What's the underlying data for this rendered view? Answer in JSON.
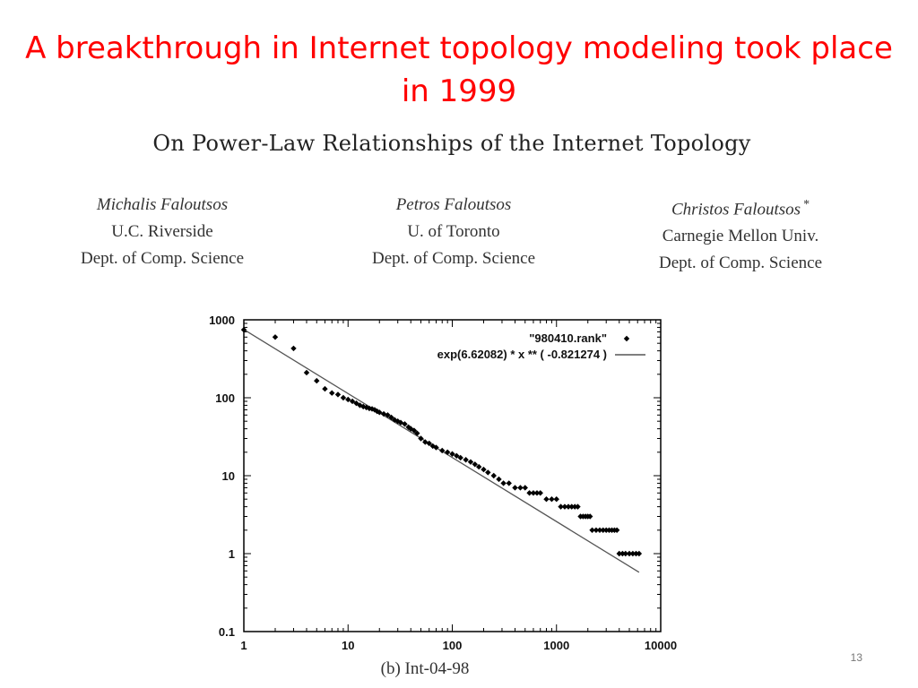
{
  "slide": {
    "title": "A breakthrough in Internet topology modeling took place in 1999",
    "page_number": "13"
  },
  "paper": {
    "title": "On Power-Law Relationships of the Internet Topology",
    "authors": [
      {
        "name": "Michalis Faloutsos",
        "affiliation": "U.C. Riverside",
        "dept": "Dept. of Comp. Science",
        "mark": ""
      },
      {
        "name": "Petros Faloutsos",
        "affiliation": "U. of Toronto",
        "dept": "Dept. of Comp. Science",
        "mark": ""
      },
      {
        "name": "Christos Faloutsos",
        "affiliation": "Carnegie Mellon Univ.",
        "dept": "Dept. of Comp. Science",
        "mark": "*"
      }
    ]
  },
  "figure": {
    "caption": "(b) Int-04-98"
  },
  "chart_data": {
    "type": "scatter",
    "xscale": "log",
    "yscale": "log",
    "xlim": [
      1,
      10000
    ],
    "ylim": [
      0.1,
      1000
    ],
    "xticks": [
      "1",
      "10",
      "100",
      "1000",
      "10000"
    ],
    "yticks": [
      "1000",
      "100",
      "10",
      "1",
      "0.1"
    ],
    "grid": false,
    "legend_position": "top-right",
    "series": [
      {
        "name": "\"980410.rank\"",
        "marker": "diamond",
        "color": "#000000",
        "points": [
          [
            1,
            745
          ],
          [
            2,
            600
          ],
          [
            3,
            430
          ],
          [
            4,
            210
          ],
          [
            5,
            165
          ],
          [
            6,
            130
          ],
          [
            7,
            115
          ],
          [
            8,
            110
          ],
          [
            9,
            100
          ],
          [
            10,
            95
          ],
          [
            11,
            90
          ],
          [
            12,
            85
          ],
          [
            13,
            80
          ],
          [
            14,
            77
          ],
          [
            15,
            75
          ],
          [
            16,
            73
          ],
          [
            17,
            72
          ],
          [
            18,
            70
          ],
          [
            19,
            67
          ],
          [
            20,
            65
          ],
          [
            22,
            62
          ],
          [
            24,
            60
          ],
          [
            26,
            56
          ],
          [
            28,
            52
          ],
          [
            30,
            50
          ],
          [
            32,
            48
          ],
          [
            35,
            46
          ],
          [
            38,
            42
          ],
          [
            40,
            40
          ],
          [
            43,
            38
          ],
          [
            46,
            35
          ],
          [
            50,
            30
          ],
          [
            55,
            27
          ],
          [
            60,
            26
          ],
          [
            65,
            24
          ],
          [
            70,
            23
          ],
          [
            80,
            21
          ],
          [
            90,
            20
          ],
          [
            100,
            19
          ],
          [
            110,
            18
          ],
          [
            120,
            17
          ],
          [
            135,
            16
          ],
          [
            150,
            15
          ],
          [
            165,
            14
          ],
          [
            180,
            13
          ],
          [
            200,
            12
          ],
          [
            220,
            11
          ],
          [
            250,
            10
          ],
          [
            280,
            9
          ],
          [
            310,
            8
          ],
          [
            350,
            8
          ],
          [
            400,
            7
          ],
          [
            450,
            7
          ],
          [
            500,
            7
          ],
          [
            550,
            6
          ],
          [
            600,
            6
          ],
          [
            650,
            6
          ],
          [
            700,
            6
          ],
          [
            800,
            5
          ],
          [
            900,
            5
          ],
          [
            1000,
            5
          ],
          [
            1100,
            4
          ],
          [
            1200,
            4
          ],
          [
            1300,
            4
          ],
          [
            1400,
            4
          ],
          [
            1500,
            4
          ],
          [
            1600,
            4
          ],
          [
            1700,
            3
          ],
          [
            1800,
            3
          ],
          [
            1900,
            3
          ],
          [
            2000,
            3
          ],
          [
            2100,
            3
          ],
          [
            2200,
            2
          ],
          [
            2400,
            2
          ],
          [
            2600,
            2
          ],
          [
            2800,
            2
          ],
          [
            3000,
            2
          ],
          [
            3200,
            2
          ],
          [
            3400,
            2
          ],
          [
            3600,
            2
          ],
          [
            3800,
            2
          ],
          [
            4000,
            1
          ],
          [
            4300,
            1
          ],
          [
            4600,
            1
          ],
          [
            5000,
            1
          ],
          [
            5400,
            1
          ],
          [
            5800,
            1
          ],
          [
            6200,
            1
          ]
        ]
      },
      {
        "name": "exp(6.62082) * x ** ( -0.821274 )",
        "type": "line",
        "color": "#555555",
        "coefficient_log": 6.62082,
        "exponent": -0.821274,
        "x_range": [
          1,
          6200
        ]
      }
    ]
  }
}
